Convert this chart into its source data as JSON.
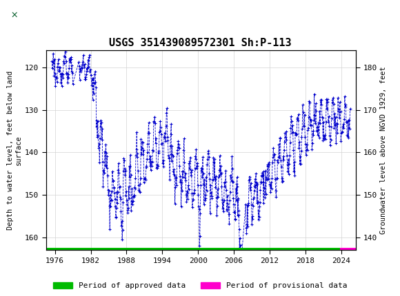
{
  "title": "USGS 351439089572301 Sh:P-113",
  "ylabel_left": "Depth to water level, feet below land\nsurface",
  "ylabel_right": "Groundwater level above NGVD 1929, feet",
  "ylim_left": [
    163,
    116
  ],
  "ylim_right": [
    137,
    184
  ],
  "yticks_left": [
    120,
    130,
    140,
    150,
    160
  ],
  "yticks_right": [
    180,
    170,
    160,
    150,
    140
  ],
  "xlim": [
    1974.5,
    2026.5
  ],
  "xticks": [
    1976,
    1982,
    1988,
    1994,
    2000,
    2006,
    2012,
    2018,
    2024
  ],
  "header_bg": "#1a6b3c",
  "data_color": "#0000cc",
  "approved_color": "#00bb00",
  "provisional_color": "#ff00cc",
  "legend_approved": "Period of approved data",
  "legend_provisional": "Period of provisional data",
  "approved_xstart": 1974.5,
  "approved_xend": 2023.8,
  "provisional_xstart": 2023.8,
  "provisional_xend": 2026.5,
  "bar_ymin": 162.5,
  "bar_height": 1.2
}
